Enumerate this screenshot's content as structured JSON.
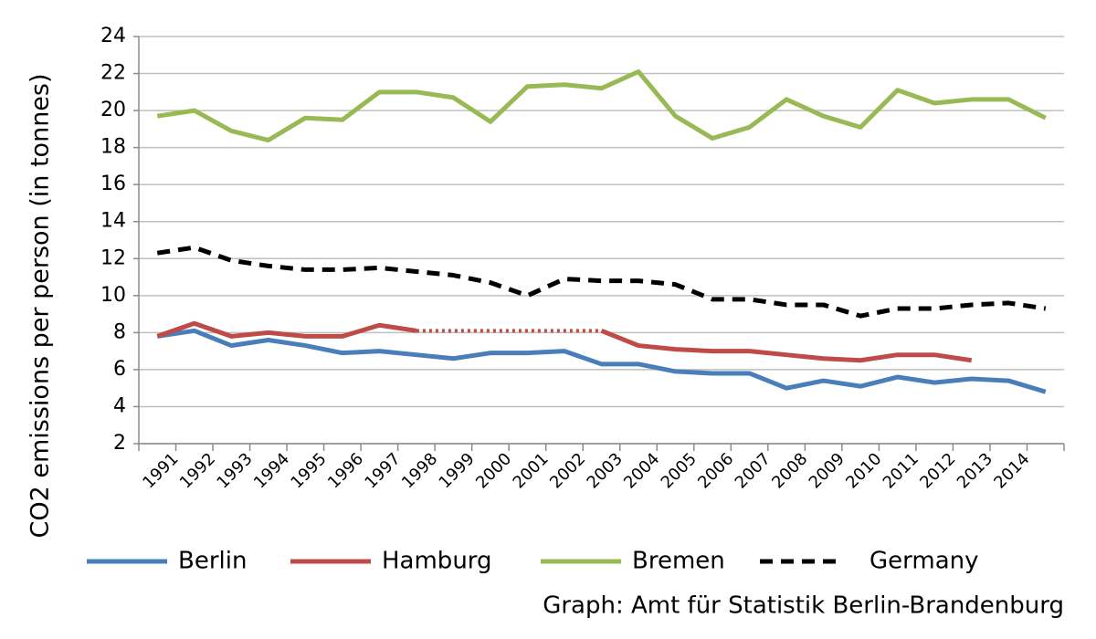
{
  "chart_data": {
    "type": "line",
    "y_label": "CO2 emissions per person (in tonnes)",
    "source": "Graph: Amt für Statistik Berlin-Brandenburg",
    "categories": [
      "1991",
      "1992",
      "1993",
      "1994",
      "1995",
      "1996",
      "1997",
      "1998",
      "1999",
      "2000",
      "2001",
      "2002",
      "2003",
      "2004",
      "2005",
      "2006",
      "2007",
      "2008",
      "2009",
      "2010",
      "2011",
      "2012",
      "2013",
      "2014",
      null
    ],
    "series": [
      {
        "name": "Berlin",
        "color": "#4a7ebb",
        "dash": "solid",
        "values": [
          7.8,
          8.1,
          7.3,
          7.6,
          7.3,
          6.9,
          7.0,
          6.8,
          6.6,
          6.9,
          6.9,
          7.0,
          6.3,
          6.3,
          5.9,
          5.8,
          5.8,
          5.0,
          5.4,
          5.1,
          5.6,
          5.3,
          5.5,
          5.4,
          4.8
        ]
      },
      {
        "name": "Hamburg",
        "color": "#be4b48",
        "dash": "solid",
        "gap_style": "dotted",
        "values": [
          7.8,
          8.5,
          7.8,
          8.0,
          7.8,
          7.8,
          8.4,
          8.1,
          null,
          null,
          null,
          null,
          8.1,
          7.3,
          7.1,
          7.0,
          7.0,
          6.8,
          6.6,
          6.5,
          6.8,
          6.8,
          6.5,
          null,
          null
        ]
      },
      {
        "name": "Bremen",
        "color": "#98b954",
        "dash": "solid",
        "values": [
          19.7,
          20.0,
          18.9,
          18.4,
          19.6,
          19.5,
          21.0,
          21.0,
          20.7,
          19.4,
          21.3,
          21.4,
          21.2,
          22.1,
          19.7,
          18.5,
          19.1,
          20.6,
          19.7,
          19.1,
          21.1,
          20.4,
          20.6,
          20.6,
          19.6
        ]
      },
      {
        "name": "Germany",
        "color": "#000000",
        "dash": "dashed",
        "values": [
          12.3,
          12.6,
          11.9,
          11.6,
          11.4,
          11.4,
          11.5,
          11.3,
          11.1,
          10.7,
          10.0,
          10.9,
          10.8,
          10.8,
          10.6,
          9.8,
          9.8,
          9.5,
          9.5,
          8.9,
          9.3,
          9.3,
          9.5,
          9.6,
          9.3
        ]
      }
    ],
    "ylim": [
      2,
      24
    ],
    "yticks": [
      2,
      4,
      6,
      8,
      10,
      12,
      14,
      16,
      18,
      20,
      22,
      24
    ],
    "grid": true
  }
}
